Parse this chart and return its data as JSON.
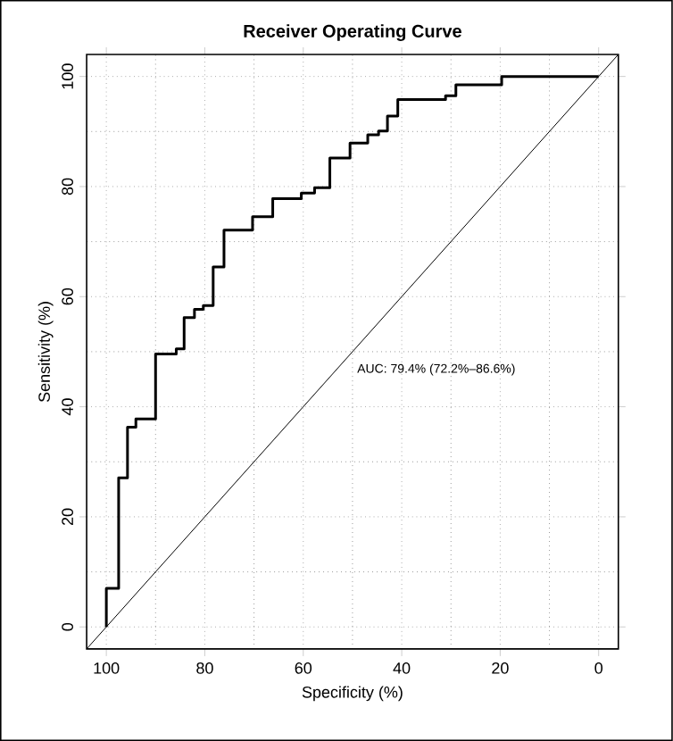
{
  "chart_data": {
    "type": "line",
    "title": "Receiver Operating Curve",
    "xlabel": "Specificity (%)",
    "ylabel": "Sensitivity (%)",
    "xlim": [
      104,
      -4
    ],
    "ylim": [
      -4,
      104
    ],
    "xticks": [
      100,
      {
        "value": 90,
        "label": null
      },
      80,
      {
        "value": 70,
        "label": null
      },
      60,
      {
        "value": 50,
        "label": null
      },
      40,
      {
        "value": 30,
        "label": null
      },
      20,
      {
        "value": 10,
        "label": null
      },
      0
    ],
    "yticks": [
      0,
      {
        "value": 10,
        "label": null
      },
      20,
      {
        "value": 30,
        "label": null
      },
      40,
      {
        "value": 50,
        "label": null
      },
      60,
      {
        "value": 70,
        "label": null
      },
      80,
      {
        "value": 90,
        "label": null
      },
      100
    ],
    "grid": true,
    "marker": "none",
    "line_style": "solid",
    "annotations": [
      "AUC: 79.4% (72.2%–86.6%)"
    ],
    "series": [
      {
        "color": "#000000",
        "x": [
          100,
          100,
          97.5,
          97.5,
          95.7,
          95.7,
          94,
          94,
          90,
          90,
          85.8,
          85.8,
          84.2,
          84.2,
          82.1,
          82.1,
          80.3,
          80.3,
          78.3,
          78.3,
          76.1,
          76.1,
          70.3,
          70.3,
          66.2,
          66.2,
          60.4,
          60.4,
          57.7,
          57.7,
          54.6,
          54.6,
          50.5,
          50.5,
          46.9,
          46.9,
          44.7,
          44.7,
          42.9,
          42.9,
          40.8,
          40.8,
          31.1,
          31.1,
          29,
          29,
          19.7,
          19.7,
          0
        ],
        "values": [
          0,
          7.0,
          7.0,
          27.1,
          27.1,
          36.3,
          36.3,
          37.8,
          37.8,
          49.6,
          49.6,
          50.5,
          50.5,
          56.2,
          56.2,
          57.7,
          57.7,
          58.4,
          58.4,
          65.4,
          65.4,
          72.1,
          72.1,
          74.5,
          74.5,
          77.8,
          77.8,
          78.8,
          78.8,
          79.8,
          79.8,
          85.2,
          85.2,
          87.9,
          87.9,
          89.4,
          89.4,
          90.1,
          90.1,
          92.8,
          92.8,
          95.8,
          95.8,
          96.5,
          96.5,
          98.5,
          98.5,
          100,
          100
        ]
      },
      {
        "color": "#000000",
        "x": [
          104,
          -4
        ],
        "values": [
          -4,
          104
        ]
      }
    ]
  }
}
